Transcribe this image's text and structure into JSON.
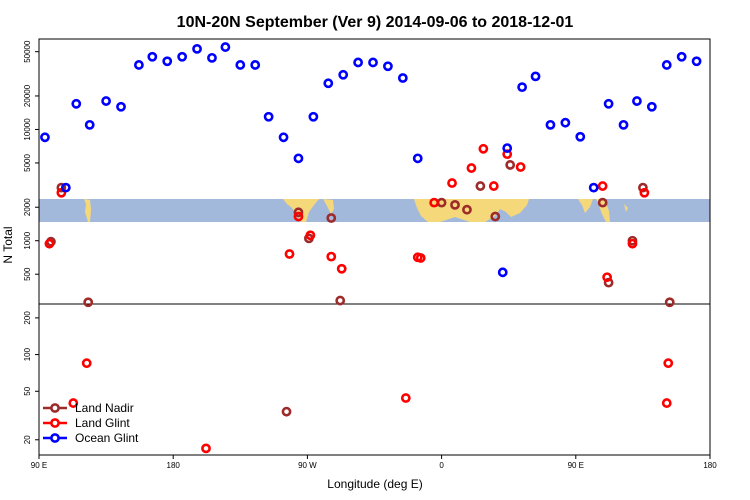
{
  "chart_data": {
    "type": "scatter",
    "title": "10N-20N September (Ver 9)   2014-09-06 to 2018-12-01",
    "xlabel": "Longitude (deg E)",
    "ylabel": "N Total",
    "x_ticks": [
      {
        "value": 90,
        "label": "90 E"
      },
      {
        "value": 180,
        "label": "180"
      },
      {
        "value": 270,
        "label": "90 W"
      },
      {
        "value": 360,
        "label": "0"
      },
      {
        "value": 450,
        "label": "90 E"
      },
      {
        "value": 540,
        "label": "180"
      }
    ],
    "xlim": [
      90,
      540
    ],
    "upper_panel": {
      "scale": "log",
      "ylim": [
        270,
        65000
      ],
      "y_ticks": [
        "500",
        "1000",
        "2000",
        "5000",
        "10000",
        "20000",
        "50000"
      ]
    },
    "lower_panel": {
      "scale": "log",
      "ylim": [
        15,
        260
      ],
      "y_ticks": [
        "20",
        "50",
        "100",
        "200"
      ]
    },
    "series": [
      {
        "name": "Land Nadir",
        "color": "#9e2a2a",
        "points": [
          [
            98,
            980
          ],
          [
            105,
            3000
          ],
          [
            123,
            280
          ],
          [
            264,
            1800
          ],
          [
            271,
            1050
          ],
          [
            286,
            1600
          ],
          [
            292,
            290
          ],
          [
            360,
            2200
          ],
          [
            369,
            2100
          ],
          [
            377,
            1900
          ],
          [
            386,
            3100
          ],
          [
            396,
            1650
          ],
          [
            406,
            4800
          ],
          [
            468,
            2200
          ],
          [
            472,
            420
          ],
          [
            488,
            1000
          ],
          [
            495,
            3000
          ],
          [
            513,
            280
          ],
          [
            256,
            34
          ]
        ]
      },
      {
        "name": "Land Glint",
        "color": "#ff0000",
        "points": [
          [
            97,
            940
          ],
          [
            105,
            2700
          ],
          [
            258,
            760
          ],
          [
            264,
            1650
          ],
          [
            272,
            1120
          ],
          [
            286,
            720
          ],
          [
            293,
            560
          ],
          [
            344,
            710
          ],
          [
            346,
            700
          ],
          [
            355,
            2200
          ],
          [
            367,
            3300
          ],
          [
            380,
            4500
          ],
          [
            388,
            6700
          ],
          [
            395,
            3100
          ],
          [
            404,
            6000
          ],
          [
            413,
            4600
          ],
          [
            468,
            3100
          ],
          [
            471,
            470
          ],
          [
            488,
            940
          ],
          [
            496,
            2700
          ],
          [
            113,
            40
          ],
          [
            122,
            85
          ],
          [
            202,
            17
          ],
          [
            336,
            44
          ],
          [
            511,
            40
          ],
          [
            512,
            85
          ]
        ]
      },
      {
        "name": "Ocean Glint",
        "color": "#0000ff",
        "points": [
          [
            94,
            8500
          ],
          [
            108,
            3000
          ],
          [
            115,
            17000
          ],
          [
            124,
            11000
          ],
          [
            135,
            18000
          ],
          [
            145,
            16000
          ],
          [
            157,
            38000
          ],
          [
            166,
            45000
          ],
          [
            176,
            41000
          ],
          [
            186,
            45000
          ],
          [
            196,
            53000
          ],
          [
            206,
            44000
          ],
          [
            215,
            55000
          ],
          [
            225,
            38000
          ],
          [
            235,
            38000
          ],
          [
            244,
            13000
          ],
          [
            254,
            8500
          ],
          [
            264,
            5500
          ],
          [
            274,
            13000
          ],
          [
            284,
            26000
          ],
          [
            294,
            31000
          ],
          [
            304,
            40000
          ],
          [
            314,
            40000
          ],
          [
            324,
            37000
          ],
          [
            334,
            29000
          ],
          [
            344,
            5500
          ],
          [
            401,
            520
          ],
          [
            404,
            6800
          ],
          [
            414,
            24000
          ],
          [
            423,
            30000
          ],
          [
            433,
            11000
          ],
          [
            443,
            11500
          ],
          [
            453,
            8600
          ],
          [
            462,
            3000
          ],
          [
            472,
            17000
          ],
          [
            482,
            11000
          ],
          [
            491,
            18000
          ],
          [
            501,
            16000
          ],
          [
            511,
            38000
          ],
          [
            521,
            45000
          ],
          [
            531,
            41000
          ]
        ]
      }
    ],
    "legend": {
      "position": "bottom-left",
      "entries": [
        "Land Nadir",
        "Land Glint",
        "Ocean Glint"
      ]
    },
    "colors": {
      "band": "#a3b9dc",
      "land": "#f5d87a"
    }
  }
}
